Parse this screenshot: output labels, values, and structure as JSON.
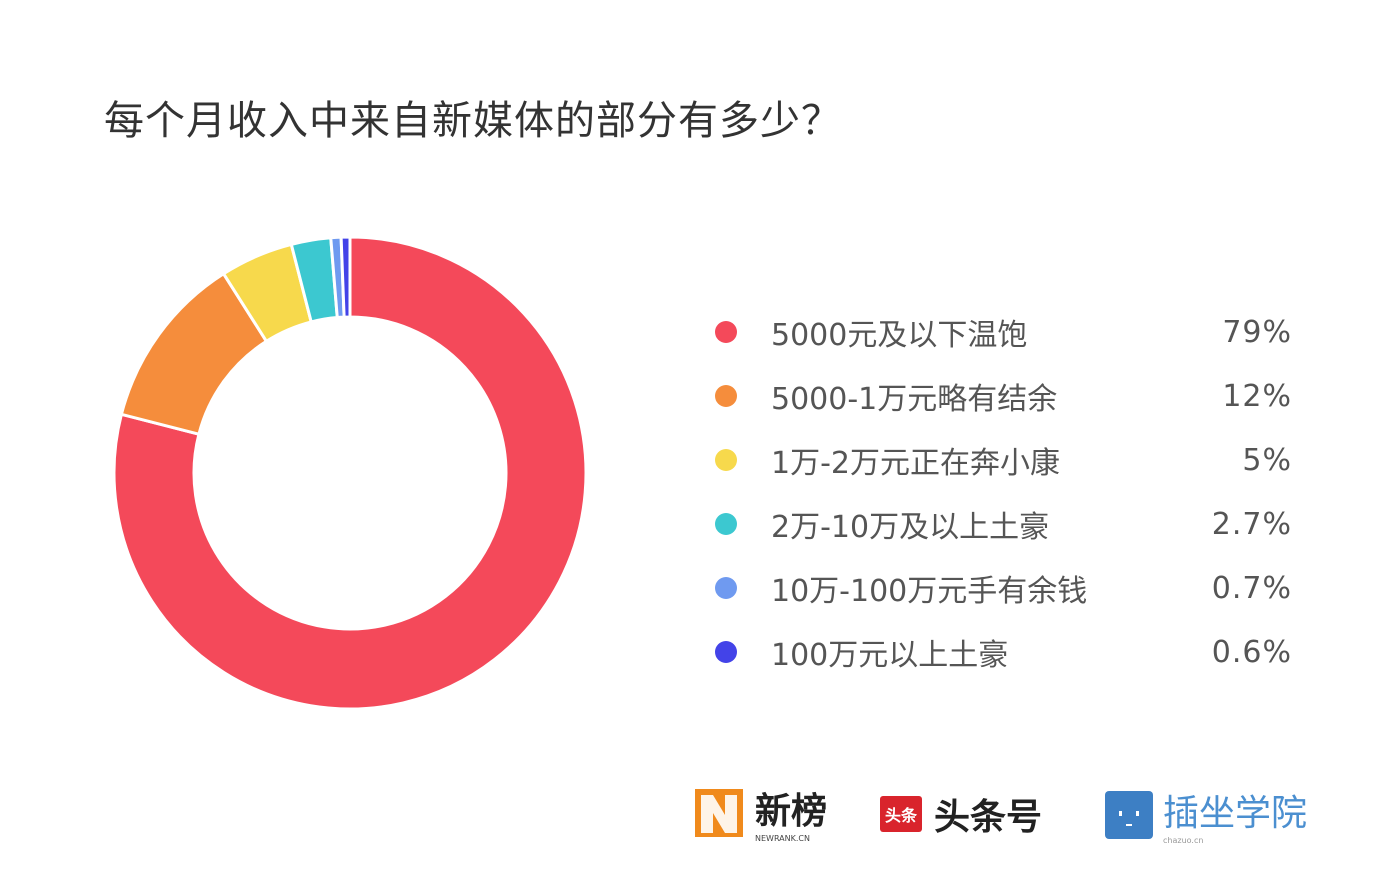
{
  "chart_data": {
    "type": "pie",
    "subtype": "donut",
    "title": "每个月收入中来自新媒体的部分有多少？",
    "categories": [
      "5000元及以下温饱",
      "5000-1万元略有结余",
      "1万-2万元正在奔小康",
      "2万-10万及以上土豪",
      "10万-100万元手有余钱",
      "100万元以上土豪"
    ],
    "values": [
      79,
      12,
      5,
      2.7,
      0.7,
      0.6
    ],
    "value_labels": [
      "79%",
      "12%",
      "5%",
      "2.7%",
      "0.7%",
      "0.6%"
    ],
    "colors": [
      "#f4495a",
      "#f58d3c",
      "#f7d94c",
      "#3cc8d0",
      "#6f9af0",
      "#4343e8"
    ],
    "start": "top",
    "direction": "clockwise",
    "legend_placement": "right"
  },
  "logos": [
    {
      "name": "新榜",
      "sub": "NEWRANK.CN",
      "color": "#f08a1c"
    },
    {
      "name": "头条号",
      "badge": "头条",
      "color": "#d9242c"
    },
    {
      "name": "插坐学院",
      "sub": "chazuo.cn",
      "color": "#3d7fc4"
    }
  ]
}
